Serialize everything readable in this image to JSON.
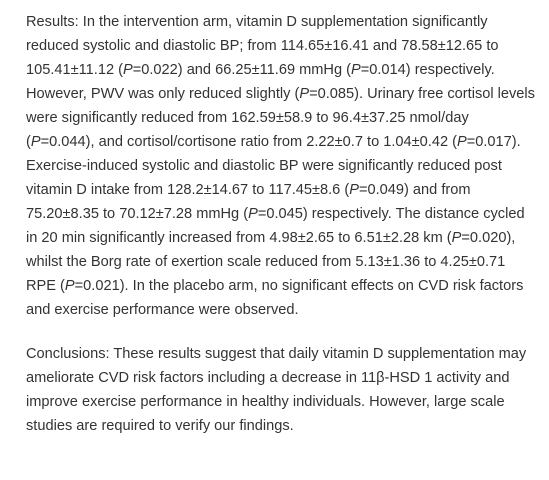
{
  "paragraphs": [
    {
      "runs": [
        "Results: In the intervention arm, vitamin D supplementation significantly reduced systolic and diastolic BP; from 114.65±16.41 and 78.58±12.65 to 105.41±11.12 (",
        {
          "text": "P",
          "italic": true
        },
        "=0.022) and 66.25±11.69 mmHg (",
        {
          "text": "P",
          "italic": true
        },
        "=0.014) respectively. However, PWV was only reduced slightly (",
        {
          "text": "P",
          "italic": true
        },
        "=0.085). Urinary free cortisol levels were significantly reduced from 162.59±58.9 to 96.4±37.25 nmol/day (",
        {
          "text": "P",
          "italic": true
        },
        "=0.044), and cortisol/cortisone ratio from 2.22±0.7 to 1.04±0.42 (",
        {
          "text": "P",
          "italic": true
        },
        "=0.017). Exercise-induced systolic and diastolic BP were significantly reduced post vitamin D intake from 128.2±14.67 to 117.45±8.6 (",
        {
          "text": "P",
          "italic": true
        },
        "=0.049) and from 75.20±8.35 to 70.12±7.28 mmHg (",
        {
          "text": "P",
          "italic": true
        },
        "=0.045) respectively. The distance cycled in 20 min significantly increased from 4.98±2.65 to 6.51±2.28 km (",
        {
          "text": "P",
          "italic": true
        },
        "=0.020), whilst the Borg rate of exertion scale reduced from 5.13±1.36 to 4.25±0.71 RPE (",
        {
          "text": "P",
          "italic": true
        },
        "=0.021). In the placebo arm, no significant effects on CVD risk factors and exercise performance were observed."
      ]
    },
    {
      "runs": [
        "Conclusions: These results suggest that daily vitamin D supplementation may ameliorate CVD risk factors including a decrease in 11β-HSD 1 activity and improve exercise performance in healthy individuals. However, large scale studies are required to verify our findings."
      ]
    }
  ]
}
